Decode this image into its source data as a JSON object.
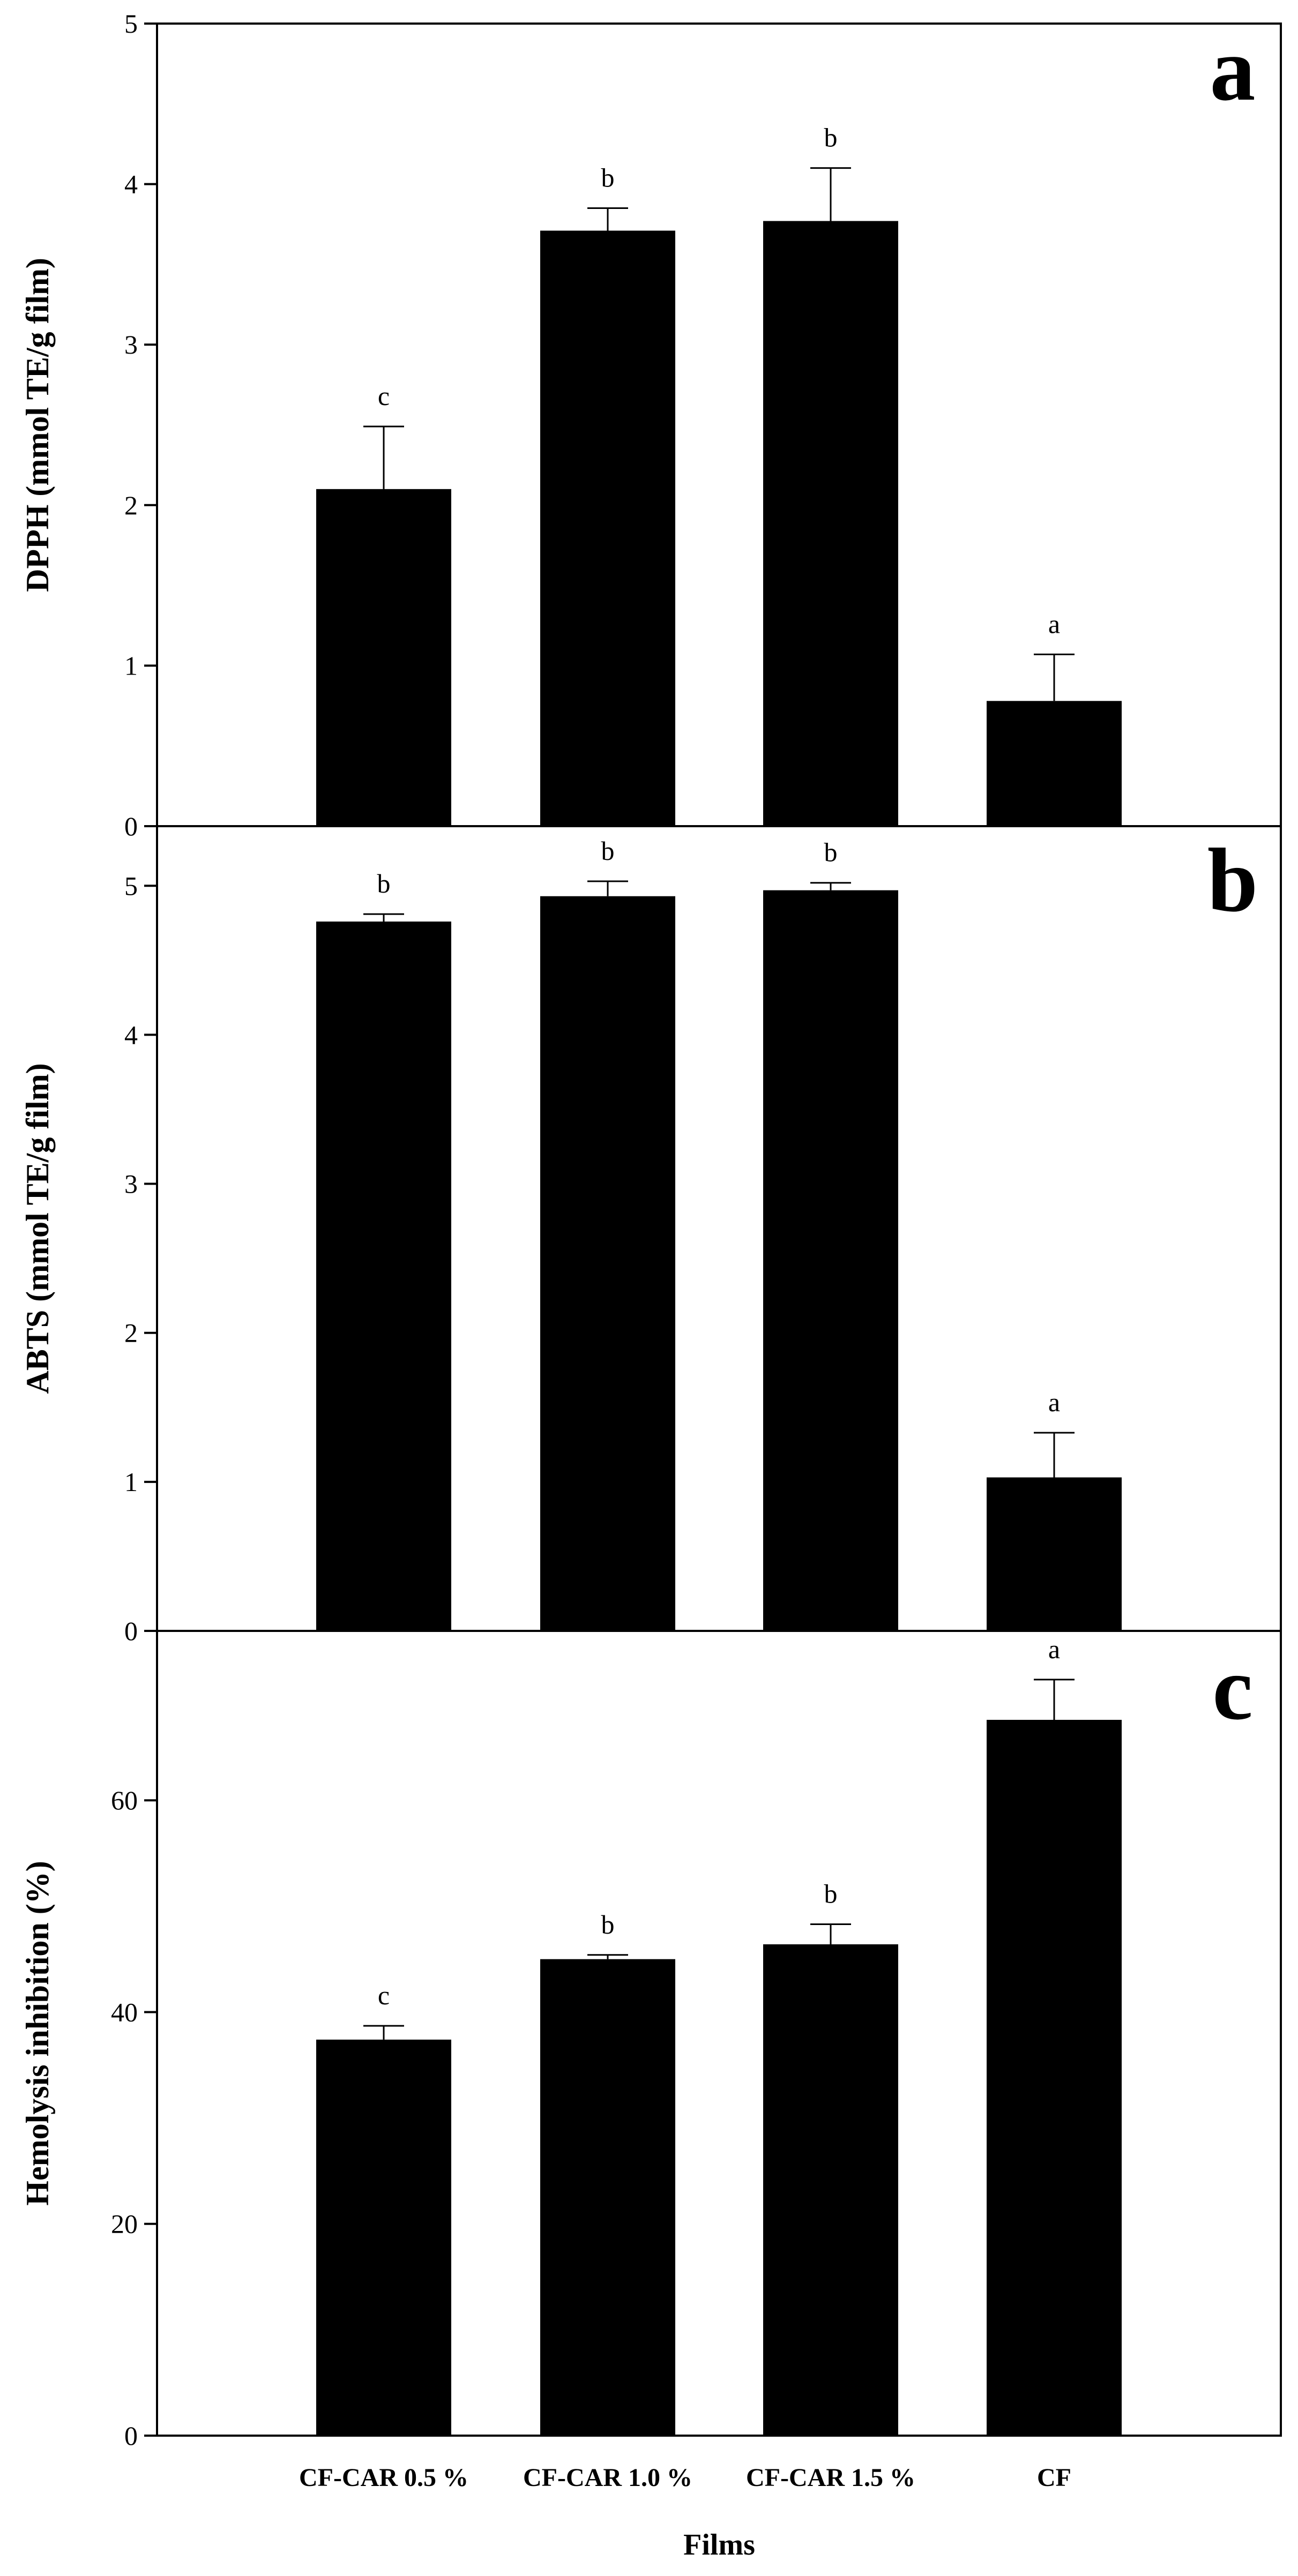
{
  "figure": {
    "xlabel": "Films",
    "categories": [
      "CF-CAR 0.5 %",
      "CF-CAR 1.0 %",
      "CF-CAR 1.5 %",
      "CF"
    ],
    "colors": {
      "bar": "#000000",
      "axis": "#000000",
      "background": "#ffffff"
    }
  },
  "chart_data": [
    {
      "type": "bar",
      "panel_label": "a",
      "ylabel": "DPPH (mmol TE/g film)",
      "categories": [
        "CF-CAR 0.5 %",
        "CF-CAR 1.0 %",
        "CF-CAR 1.5 %",
        "CF"
      ],
      "values": [
        2.1,
        3.71,
        3.77,
        0.78
      ],
      "errors": [
        0.39,
        0.14,
        0.33,
        0.29
      ],
      "significance": [
        "c",
        "b",
        "b",
        "a"
      ],
      "ylim": [
        0,
        5
      ],
      "yticks": [
        0,
        1,
        2,
        3,
        4,
        5
      ],
      "grid": false
    },
    {
      "type": "bar",
      "panel_label": "b",
      "ylabel": "ABTS (mmol TE/g film)",
      "categories": [
        "CF-CAR 0.5 %",
        "CF-CAR 1.0 %",
        "CF-CAR 1.5 %",
        "CF"
      ],
      "values": [
        4.76,
        4.93,
        4.97,
        1.03
      ],
      "errors": [
        0.05,
        0.1,
        0.05,
        0.3
      ],
      "significance": [
        "b",
        "b",
        "b",
        "a"
      ],
      "ylim": [
        0,
        5.4
      ],
      "yticks": [
        0,
        1,
        2,
        3,
        4,
        5
      ],
      "grid": false
    },
    {
      "type": "bar",
      "panel_label": "c",
      "ylabel": "Hemolysis inhibition (%)",
      "categories": [
        "CF-CAR 0.5 %",
        "CF-CAR 1.0 %",
        "CF-CAR 1.5 %",
        "CF"
      ],
      "values": [
        37.4,
        45.0,
        46.4,
        67.6
      ],
      "errors": [
        1.3,
        0.4,
        1.9,
        3.8
      ],
      "significance": [
        "c",
        "b",
        "b",
        "a"
      ],
      "ylim": [
        0,
        76
      ],
      "yticks": [
        0,
        20,
        40,
        60
      ],
      "grid": false
    }
  ]
}
